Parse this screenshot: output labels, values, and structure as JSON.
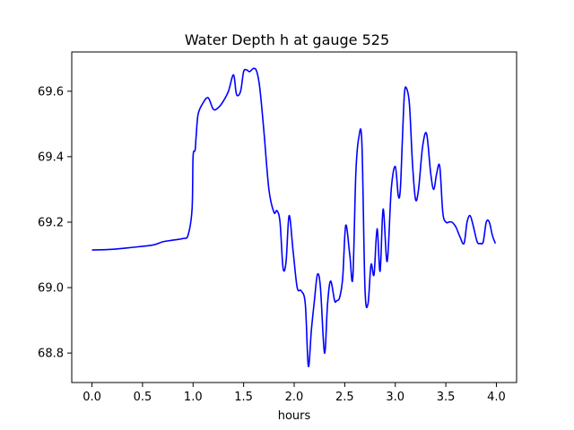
{
  "chart_data": {
    "type": "line",
    "title": "Water Depth h at gauge 525",
    "xlabel": "hours",
    "ylabel": "",
    "xlim": [
      -0.2,
      4.2
    ],
    "ylim": [
      68.71,
      69.72
    ],
    "xticks": [
      0.0,
      0.5,
      1.0,
      1.5,
      2.0,
      2.5,
      3.0,
      3.5,
      4.0
    ],
    "xtick_labels": [
      "0.0",
      "0.5",
      "1.0",
      "1.5",
      "2.0",
      "2.5",
      "3.0",
      "3.5",
      "4.0"
    ],
    "yticks": [
      68.8,
      69.0,
      69.2,
      69.4,
      69.6
    ],
    "ytick_labels": [
      "68.8",
      "69.0",
      "69.2",
      "69.4",
      "69.6"
    ],
    "grid": false,
    "series": [
      {
        "color": "#0000ff",
        "x": [
          0.0,
          0.2,
          0.4,
          0.6,
          0.7,
          0.8,
          0.9,
          0.95,
          0.99,
          1.0,
          1.02,
          1.03,
          1.05,
          1.1,
          1.15,
          1.2,
          1.25,
          1.3,
          1.35,
          1.4,
          1.43,
          1.47,
          1.5,
          1.53,
          1.56,
          1.6,
          1.63,
          1.66,
          1.7,
          1.75,
          1.8,
          1.83,
          1.86,
          1.89,
          1.92,
          1.95,
          1.99,
          2.03,
          2.07,
          2.11,
          2.14,
          2.17,
          2.2,
          2.23,
          2.26,
          2.3,
          2.33,
          2.36,
          2.4,
          2.42,
          2.45,
          2.48,
          2.51,
          2.55,
          2.58,
          2.61,
          2.64,
          2.67,
          2.7,
          2.73,
          2.76,
          2.79,
          2.82,
          2.85,
          2.88,
          2.92,
          2.96,
          3.0,
          3.03,
          3.05,
          3.07,
          3.09,
          3.11,
          3.14,
          3.17,
          3.2,
          3.23,
          3.27,
          3.31,
          3.35,
          3.38,
          3.41,
          3.44,
          3.47,
          3.5,
          3.53,
          3.56,
          3.6,
          3.64,
          3.68,
          3.71,
          3.74,
          3.77,
          3.81,
          3.84,
          3.87,
          3.9,
          3.93,
          3.96,
          3.99
        ],
        "y": [
          69.115,
          69.117,
          69.123,
          69.13,
          69.14,
          69.145,
          69.15,
          69.16,
          69.24,
          69.4,
          69.42,
          69.46,
          69.53,
          69.565,
          69.58,
          69.545,
          69.55,
          69.57,
          69.6,
          69.65,
          69.59,
          69.6,
          69.66,
          69.665,
          69.66,
          69.67,
          69.66,
          69.61,
          69.48,
          69.3,
          69.23,
          69.235,
          69.2,
          69.06,
          69.08,
          69.22,
          69.11,
          69.0,
          68.99,
          68.95,
          68.76,
          68.87,
          68.96,
          69.04,
          69.0,
          68.8,
          68.95,
          69.02,
          68.96,
          68.96,
          68.97,
          69.03,
          69.19,
          69.1,
          69.03,
          69.35,
          69.46,
          69.44,
          69.0,
          68.95,
          69.07,
          69.04,
          69.18,
          69.05,
          69.24,
          69.08,
          69.3,
          69.37,
          69.28,
          69.3,
          69.45,
          69.59,
          69.61,
          69.56,
          69.38,
          69.27,
          69.3,
          69.43,
          69.47,
          69.35,
          69.3,
          69.35,
          69.37,
          69.23,
          69.2,
          69.2,
          69.2,
          69.185,
          69.155,
          69.135,
          69.2,
          69.22,
          69.19,
          69.14,
          69.135,
          69.14,
          69.2,
          69.2,
          69.16,
          69.135
        ]
      }
    ]
  }
}
